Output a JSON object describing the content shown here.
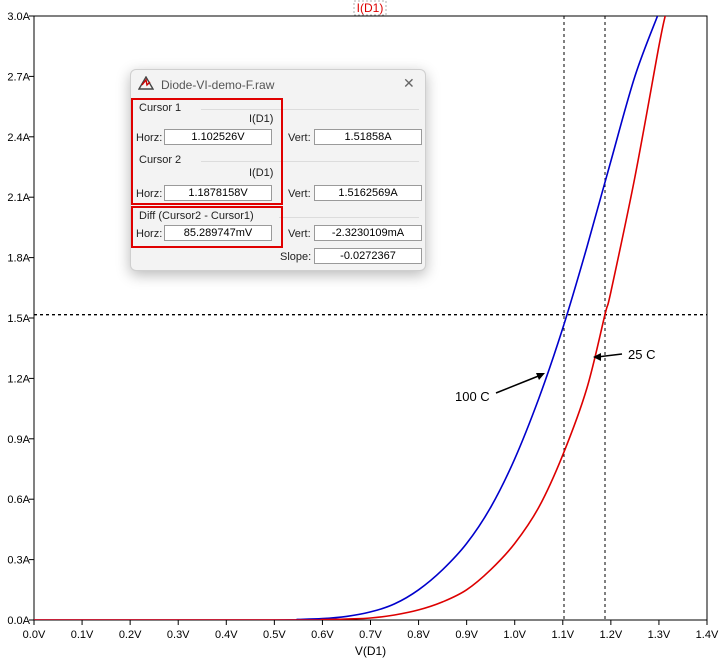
{
  "window": {
    "title": "Diode-VI-demo-F.raw"
  },
  "colors": {
    "blue_trace": "#0000cc",
    "red_trace": "#dd0000",
    "trace_title": "#dd0000",
    "highlight_box": "#e00000"
  },
  "chart_data": {
    "type": "line",
    "title": "I(D1)",
    "xlabel": "V(D1)",
    "ylabel": "",
    "xlim": [
      0.0,
      1.4
    ],
    "ylim": [
      0.0,
      3.0
    ],
    "xticks": [
      "0.0V",
      "0.1V",
      "0.2V",
      "0.3V",
      "0.4V",
      "0.5V",
      "0.6V",
      "0.7V",
      "0.8V",
      "0.9V",
      "1.0V",
      "1.1V",
      "1.2V",
      "1.3V",
      "1.4V"
    ],
    "yticks": [
      "0.0A",
      "0.3A",
      "0.6A",
      "0.9A",
      "1.2A",
      "1.5A",
      "1.8A",
      "2.1A",
      "2.4A",
      "2.7A",
      "3.0A"
    ],
    "grid": false,
    "series": [
      {
        "color": "#0000cc",
        "x": [
          0.5,
          0.55,
          0.6,
          0.65,
          0.7,
          0.75,
          0.8,
          0.85,
          0.9,
          0.95,
          1.0,
          1.05,
          1.1,
          1.15,
          1.2,
          1.25,
          1.297
        ],
        "y": [
          0.0,
          0.003,
          0.007,
          0.018,
          0.04,
          0.08,
          0.15,
          0.25,
          0.38,
          0.56,
          0.8,
          1.1,
          1.45,
          1.85,
          2.28,
          2.7,
          3.0
        ]
      },
      {
        "color": "#dd0000",
        "x": [
          0.55,
          0.6,
          0.65,
          0.7,
          0.75,
          0.8,
          0.85,
          0.9,
          0.95,
          1.0,
          1.05,
          1.1,
          1.15,
          1.188,
          1.2,
          1.25,
          1.3,
          1.313
        ],
        "y": [
          0.0,
          0.002,
          0.005,
          0.01,
          0.025,
          0.05,
          0.09,
          0.15,
          0.25,
          0.38,
          0.56,
          0.82,
          1.15,
          1.52,
          1.63,
          2.2,
          2.85,
          3.0
        ]
      }
    ],
    "annotations": [
      "100 C",
      "25 C"
    ],
    "cursors": {
      "x1": 1.102526,
      "x2": 1.1878158,
      "y": 1.5162569
    }
  },
  "cursor_dialog": {
    "cursor1": {
      "heading": "Cursor 1",
      "trace": "I(D1)",
      "horz_label": "Horz:",
      "horz": "1.102526V",
      "vert_label": "Vert:",
      "vert": "1.51858A"
    },
    "cursor2": {
      "heading": "Cursor 2",
      "trace": "I(D1)",
      "horz_label": "Horz:",
      "horz": "1.1878158V",
      "vert_label": "Vert:",
      "vert": "1.5162569A"
    },
    "diff": {
      "heading": "Diff (Cursor2 - Cursor1)",
      "horz_label": "Horz:",
      "horz": "85.289747mV",
      "vert_label": "Vert:",
      "vert": "-2.3230109mA",
      "slope_label": "Slope:",
      "slope": "-0.0272367"
    }
  }
}
